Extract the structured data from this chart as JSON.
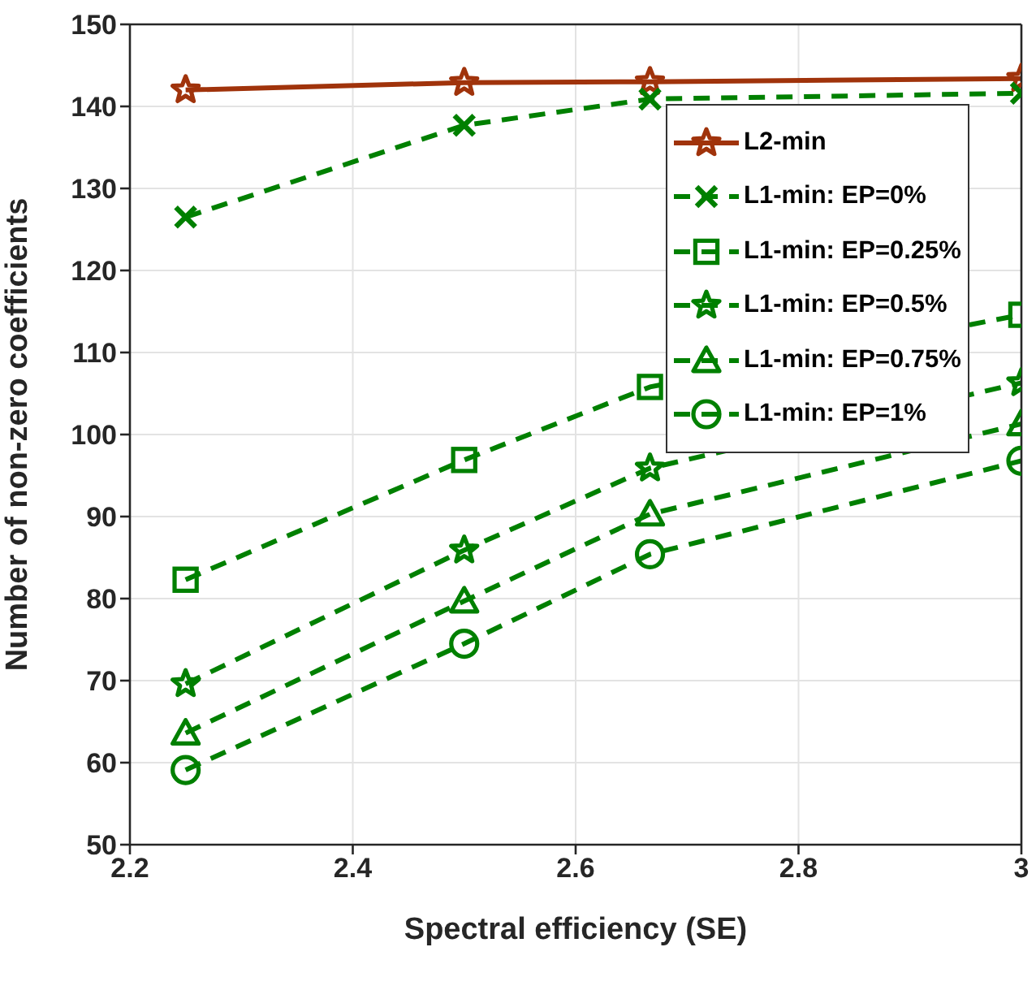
{
  "chart_data": {
    "type": "line",
    "xlabel": "Spectral efficiency (SE)",
    "ylabel": "Number of non-zero coefficients",
    "x": [
      2.25,
      2.5,
      2.6667,
      3
    ],
    "xlim": [
      2.2,
      3
    ],
    "xticks": [
      2.2,
      2.4,
      2.6,
      2.8,
      3
    ],
    "ylim": [
      50,
      150
    ],
    "yticks": [
      50,
      60,
      70,
      80,
      90,
      100,
      110,
      120,
      130,
      140,
      150
    ],
    "grid": true,
    "legend": "top right",
    "series": [
      {
        "name": "L2-min",
        "color": "#a0330b",
        "marker": "star",
        "line_style": "solid",
        "values": [
          142.0,
          142.9,
          143.0,
          143.4
        ]
      },
      {
        "name": "L1-min: EP=0%",
        "color": "#008000",
        "marker": "cross",
        "line_style": "dashed",
        "values": [
          126.5,
          137.7,
          140.9,
          141.6
        ]
      },
      {
        "name": "L1-min: EP=0.25%",
        "color": "#008000",
        "marker": "square",
        "line_style": "dashed",
        "values": [
          82.3,
          96.9,
          105.8,
          114.6
        ]
      },
      {
        "name": "L1-min: EP=0.5%",
        "color": "#008000",
        "marker": "star",
        "line_style": "dashed",
        "values": [
          69.6,
          85.9,
          95.9,
          106.3
        ]
      },
      {
        "name": "L1-min: EP=0.75%",
        "color": "#008000",
        "marker": "triangle",
        "line_style": "dashed",
        "values": [
          63.6,
          79.7,
          90.3,
          101.3
        ]
      },
      {
        "name": "L1-min: EP=1%",
        "color": "#008000",
        "marker": "circle",
        "line_style": "dashed",
        "values": [
          59.1,
          74.5,
          85.4,
          96.8
        ]
      }
    ]
  }
}
